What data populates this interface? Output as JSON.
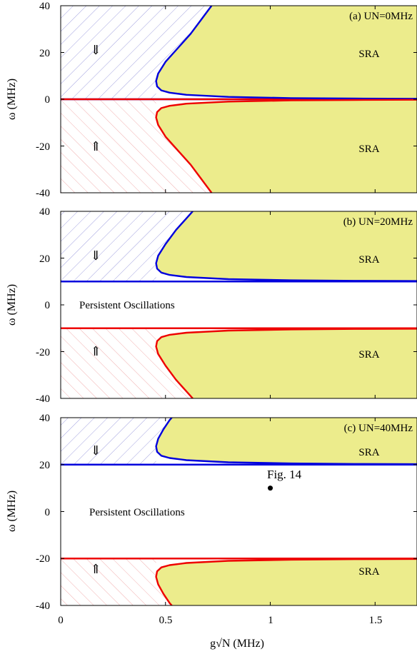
{
  "chart_data": [
    {
      "type": "area",
      "panel_label": "(a) UN=0MHz",
      "ylabel": "ω (MHz)",
      "xlim": [
        0,
        1.7
      ],
      "ylim": [
        -40,
        40
      ],
      "yticks": [
        "40",
        "20",
        "0",
        "-20",
        "-40"
      ],
      "regions": {
        "upper_arrow": "⇓",
        "lower_arrow": "⇑",
        "upper_label": "SRA",
        "lower_label": "SRA",
        "middle_label": ""
      },
      "series": [
        {
          "color": "#0000dd",
          "points": [
            [
              0,
              0
            ],
            [
              0.3,
              0
            ],
            [
              1.0,
              0.3
            ],
            [
              1.7,
              0.1
            ]
          ],
          "branch": [
            [
              0.455,
              7.8
            ],
            [
              0.46,
              5.5
            ],
            [
              0.48,
              3.8
            ],
            [
              0.52,
              2.8
            ],
            [
              0.6,
              1.9
            ],
            [
              0.8,
              1.0
            ],
            [
              1.1,
              0.5
            ],
            [
              1.4,
              0.3
            ],
            [
              1.7,
              0.2
            ]
          ],
          "edge": [
            [
              0.455,
              7.8
            ],
            [
              0.465,
              11
            ],
            [
              0.5,
              16
            ],
            [
              0.56,
              22
            ],
            [
              0.62,
              28
            ],
            [
              0.67,
              34
            ],
            [
              0.72,
              40
            ]
          ]
        },
        {
          "color": "#ee0000",
          "points": [
            [
              0,
              0
            ],
            [
              1.7,
              0
            ]
          ],
          "branch": [
            [
              0.455,
              -7.8
            ],
            [
              0.46,
              -5.5
            ],
            [
              0.48,
              -3.8
            ],
            [
              0.52,
              -2.8
            ],
            [
              0.6,
              -1.9
            ],
            [
              0.8,
              -1.0
            ],
            [
              1.1,
              -0.5
            ],
            [
              1.4,
              -0.3
            ],
            [
              1.7,
              -0.2
            ]
          ],
          "edge": [
            [
              0.455,
              -7.8
            ],
            [
              0.465,
              -11
            ],
            [
              0.5,
              -16
            ],
            [
              0.56,
              -22
            ],
            [
              0.62,
              -28
            ],
            [
              0.67,
              -34
            ],
            [
              0.72,
              -40
            ]
          ]
        }
      ],
      "boundaries": {
        "upper_line": 0,
        "lower_line": 0
      }
    },
    {
      "type": "area",
      "panel_label": "(b) UN=20MHz",
      "ylabel": "ω (MHz)",
      "xlim": [
        0,
        1.7
      ],
      "ylim": [
        -40,
        40
      ],
      "yticks": [
        "40",
        "20",
        "0",
        "-20",
        "-40"
      ],
      "regions": {
        "upper_arrow": "⇓",
        "lower_arrow": "⇑",
        "upper_label": "SRA",
        "lower_label": "SRA",
        "middle_label": "Persistent Oscillations"
      },
      "series": [
        {
          "color": "#0000dd",
          "branch": [
            [
              0.455,
              17.8
            ],
            [
              0.46,
              15.5
            ],
            [
              0.48,
              13.8
            ],
            [
              0.52,
              12.8
            ],
            [
              0.6,
              11.9
            ],
            [
              0.8,
              11.0
            ],
            [
              1.1,
              10.5
            ],
            [
              1.4,
              10.3
            ],
            [
              1.7,
              10.2
            ]
          ],
          "edge": [
            [
              0.455,
              17.8
            ],
            [
              0.465,
              21
            ],
            [
              0.5,
              26
            ],
            [
              0.55,
              32
            ],
            [
              0.6,
              37
            ],
            [
              0.63,
              40
            ]
          ]
        },
        {
          "color": "#ee0000",
          "branch": [
            [
              0.455,
              -17.8
            ],
            [
              0.46,
              -15.5
            ],
            [
              0.48,
              -13.8
            ],
            [
              0.52,
              -12.8
            ],
            [
              0.6,
              -11.9
            ],
            [
              0.8,
              -11.0
            ],
            [
              1.1,
              -10.5
            ],
            [
              1.4,
              -10.3
            ],
            [
              1.7,
              -10.2
            ]
          ],
          "edge": [
            [
              0.455,
              -17.8
            ],
            [
              0.465,
              -21
            ],
            [
              0.5,
              -26
            ],
            [
              0.55,
              -32
            ],
            [
              0.6,
              -37
            ],
            [
              0.63,
              -40
            ]
          ]
        }
      ],
      "boundaries": {
        "upper_line": 10,
        "lower_line": -10
      }
    },
    {
      "type": "area",
      "panel_label": "(c) UN=40MHz",
      "ylabel": "ω (MHz)",
      "xlabel": "g√N (MHz)",
      "xlim": [
        0,
        1.7
      ],
      "ylim": [
        -40,
        40
      ],
      "xticks": [
        "0",
        "0.5",
        "1",
        "1.5"
      ],
      "xtick_values": [
        0,
        0.5,
        1,
        1.5
      ],
      "yticks": [
        "40",
        "20",
        "0",
        "-20",
        "-40"
      ],
      "regions": {
        "upper_arrow": "⇓",
        "lower_arrow": "⇑",
        "upper_label": "SRA",
        "lower_label": "SRA",
        "middle_label": "Persistent Oscillations"
      },
      "series": [
        {
          "color": "#0000dd",
          "branch": [
            [
              0.455,
              27.8
            ],
            [
              0.46,
              25.5
            ],
            [
              0.48,
              23.8
            ],
            [
              0.52,
              22.8
            ],
            [
              0.6,
              21.9
            ],
            [
              0.8,
              21.0
            ],
            [
              1.1,
              20.5
            ],
            [
              1.4,
              20.3
            ],
            [
              1.7,
              20.2
            ]
          ],
          "edge": [
            [
              0.455,
              27.8
            ],
            [
              0.465,
              31
            ],
            [
              0.49,
              35
            ],
            [
              0.52,
              39
            ],
            [
              0.53,
              40
            ]
          ]
        },
        {
          "color": "#ee0000",
          "branch": [
            [
              0.455,
              -27.8
            ],
            [
              0.46,
              -25.5
            ],
            [
              0.48,
              -23.8
            ],
            [
              0.52,
              -22.8
            ],
            [
              0.6,
              -21.9
            ],
            [
              0.8,
              -21.0
            ],
            [
              1.1,
              -20.5
            ],
            [
              1.4,
              -20.3
            ],
            [
              1.7,
              -20.2
            ]
          ],
          "edge": [
            [
              0.455,
              -27.8
            ],
            [
              0.465,
              -31
            ],
            [
              0.49,
              -35
            ],
            [
              0.52,
              -39
            ],
            [
              0.53,
              -40
            ]
          ]
        }
      ],
      "boundaries": {
        "upper_line": 20,
        "lower_line": -20
      },
      "point": {
        "x": 1.0,
        "y": 10,
        "label": "Fig. 14"
      }
    }
  ],
  "colors": {
    "sra_fill": "#ecec8c",
    "upper_hatch": "#8a8ad8",
    "lower_hatch": "#ee9a9a",
    "blue_line": "#0000dd",
    "red_line": "#ee0000"
  }
}
